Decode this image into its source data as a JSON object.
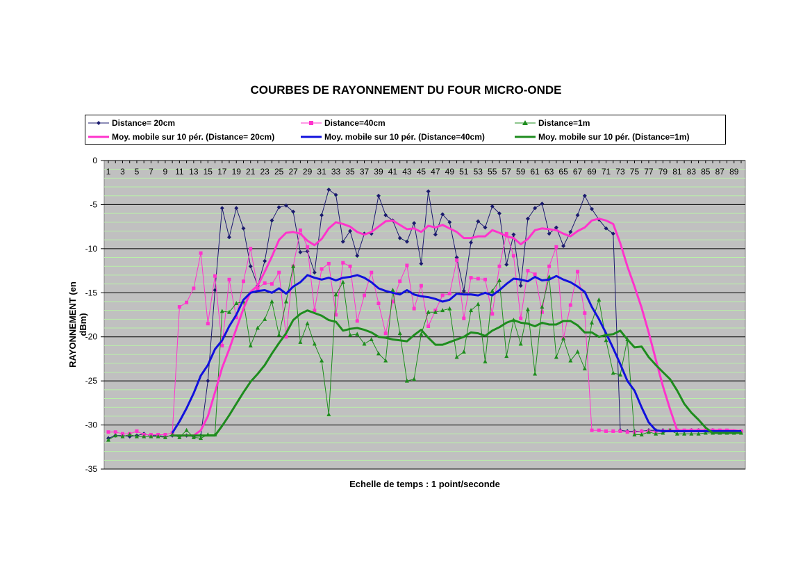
{
  "chart_data": {
    "type": "line",
    "title": "COURBES DE RAYONNEMENT DU FOUR MICRO-ONDE",
    "xlabel": "Echelle de temps : 1 point/seconde",
    "ylabel": "RAYONNEMENT (en dBm)",
    "ylim": [
      -35,
      0
    ],
    "yticks": [
      0,
      -5,
      -10,
      -15,
      -20,
      -25,
      -30,
      -35
    ],
    "xlim": [
      1,
      90
    ],
    "xtick_labels": [
      "1",
      "3",
      "5",
      "7",
      "9",
      "11",
      "13",
      "15",
      "17",
      "19",
      "21",
      "23",
      "25",
      "27",
      "29",
      "31",
      "33",
      "35",
      "37",
      "39",
      "41",
      "43",
      "45",
      "47",
      "49",
      "51",
      "53",
      "55",
      "57",
      "59",
      "61",
      "63",
      "65",
      "67",
      "69",
      "71",
      "73",
      "75",
      "77",
      "79",
      "81",
      "83",
      "85",
      "87",
      "89"
    ],
    "grid": "horizontal",
    "legend_position": "top",
    "series": [
      {
        "name": "Distance= 20cm",
        "color": "#1a1a6e",
        "marker": "diamond",
        "width": 1,
        "values": [
          -31.5,
          -31.2,
          -31.2,
          -31.3,
          -31.2,
          -31.0,
          -31.2,
          -31.2,
          -31.3,
          -31.2,
          -31.3,
          -31.2,
          -31.3,
          -31.2,
          -25.0,
          -14.7,
          -5.4,
          -8.7,
          -5.4,
          -7.7,
          -12.0,
          -14.2,
          -11.4,
          -6.8,
          -5.3,
          -5.1,
          -5.8,
          -10.4,
          -10.3,
          -12.7,
          -6.2,
          -3.3,
          -3.9,
          -9.2,
          -8.0,
          -10.8,
          -8.3,
          -8.3,
          -4.0,
          -6.2,
          -6.8,
          -8.8,
          -9.2,
          -7.1,
          -11.7,
          -3.5,
          -8.4,
          -6.1,
          -7.0,
          -11.0,
          -14.8,
          -9.3,
          -6.9,
          -7.6,
          -5.2,
          -6.0,
          -11.8,
          -8.4,
          -14.2,
          -6.6,
          -5.4,
          -4.9,
          -8.3,
          -7.6,
          -9.7,
          -8.1,
          -6.2,
          -4.0,
          -5.5,
          -6.7,
          -7.7,
          -8.3,
          -30.6,
          -30.7,
          -30.7,
          -30.7,
          -30.6,
          -30.6,
          -30.6,
          -30.6,
          -30.6,
          -30.7,
          -30.6,
          -30.6,
          -30.6,
          -30.6,
          -30.7,
          -30.7,
          -30.7,
          -30.8
        ]
      },
      {
        "name": "Distance=40cm",
        "color": "#ff33cc",
        "marker": "square",
        "width": 1,
        "values": [
          -30.8,
          -30.8,
          -31.0,
          -31.0,
          -30.7,
          -31.1,
          -31.1,
          -31.1,
          -31.1,
          -30.9,
          -16.6,
          -16.1,
          -14.5,
          -10.5,
          -18.5,
          -13.1,
          -21.0,
          -13.5,
          -17.8,
          -13.7,
          -10.0,
          -14.5,
          -13.9,
          -14.0,
          -12.7,
          -20.0,
          -12.0,
          -7.9,
          -9.8,
          -17.0,
          -12.3,
          -11.7,
          -17.5,
          -11.6,
          -12.0,
          -18.2,
          -15.3,
          -12.7,
          -16.2,
          -19.6,
          -16.0,
          -13.7,
          -11.9,
          -16.8,
          -14.2,
          -18.8,
          -17.0,
          -15.3,
          -15.1,
          -11.3,
          -17.9,
          -13.3,
          -13.4,
          -13.5,
          -17.4,
          -12.0,
          -8.3,
          -10.8,
          -17.9,
          -12.5,
          -12.9,
          -17.2,
          -12.0,
          -9.8,
          -20.2,
          -16.4,
          -12.6,
          -17.3,
          -30.6,
          -30.6,
          -30.7,
          -30.7,
          -30.7,
          -30.8,
          -30.8,
          -30.7,
          -30.7,
          -30.7,
          -30.7,
          -30.6,
          -30.6,
          -30.6,
          -30.6,
          -30.6,
          -30.6,
          -30.6,
          -30.6,
          -30.6,
          -30.7,
          -30.7
        ]
      },
      {
        "name": "Distance=1m",
        "color": "#1e8c1e",
        "marker": "triangle",
        "width": 1,
        "values": [
          -31.7,
          -31.2,
          -31.3,
          -31.1,
          -31.3,
          -31.3,
          -31.3,
          -31.3,
          -31.4,
          -31.1,
          -31.4,
          -30.6,
          -31.4,
          -31.5,
          -31.1,
          -31.1,
          -17.1,
          -17.2,
          -16.2,
          -16.0,
          -21.0,
          -19.0,
          -18.0,
          -16.0,
          -19.8,
          -16.0,
          -12.0,
          -20.6,
          -18.5,
          -20.8,
          -22.7,
          -28.8,
          -15.2,
          -13.8,
          -19.8,
          -19.7,
          -20.8,
          -20.3,
          -21.9,
          -22.7,
          -14.7,
          -19.6,
          -25.0,
          -24.8,
          -19.7,
          -17.2,
          -17.2,
          -17.0,
          -16.8,
          -22.3,
          -21.7,
          -17.0,
          -16.3,
          -22.8,
          -14.8,
          -13.6,
          -22.2,
          -18.1,
          -20.8,
          -16.9,
          -24.2,
          -16.6,
          -13.2,
          -22.3,
          -20.2,
          -22.7,
          -21.7,
          -23.6,
          -18.4,
          -15.8,
          -20.4,
          -24.1,
          -24.3,
          -20.3,
          -31.1,
          -31.1,
          -30.8,
          -31.0,
          -30.9,
          -30.6,
          -31.0,
          -31.0,
          -31.0,
          -31.0,
          -30.9,
          -30.9,
          -30.9,
          -30.9,
          -30.9,
          -30.9
        ]
      },
      {
        "name": "Moy. mobile sur 10 pér. (Distance= 20cm)",
        "color": "#ff33cc",
        "marker": "none",
        "width": 3,
        "values": [
          null,
          null,
          null,
          null,
          null,
          null,
          null,
          null,
          null,
          -31.2,
          -31.2,
          -31.2,
          -31.2,
          -30.6,
          -29.0,
          -26.3,
          -23.5,
          -21.4,
          -19.1,
          -16.8,
          -14.9,
          -14.2,
          -12.6,
          -10.9,
          -9.0,
          -8.2,
          -8.1,
          -8.3,
          -9.1,
          -9.6,
          -8.9,
          -7.7,
          -7.0,
          -7.2,
          -7.5,
          -8.1,
          -8.4,
          -8.1,
          -7.5,
          -6.9,
          -6.8,
          -7.3,
          -7.8,
          -7.7,
          -8.1,
          -7.4,
          -7.6,
          -7.3,
          -7.7,
          -8.1,
          -8.8,
          -8.8,
          -8.6,
          -8.6,
          -7.9,
          -8.2,
          -8.6,
          -8.8,
          -9.5,
          -8.9,
          -7.9,
          -7.7,
          -7.8,
          -7.9,
          -8.3,
          -8.6,
          -8.0,
          -7.6,
          -6.8,
          -6.6,
          -6.8,
          -7.2,
          -9.4,
          -12.0,
          -14.3,
          -16.7,
          -19.5,
          -22.6,
          -25.6,
          -28.2,
          -30.6,
          -30.6,
          -30.6,
          -30.6,
          -30.6,
          -30.6,
          -30.6,
          -30.6,
          -30.6,
          -30.7
        ]
      },
      {
        "name": "Moy. mobile sur 10 pér. (Distance=40cm)",
        "color": "#1111dd",
        "marker": "none",
        "width": 3,
        "values": [
          null,
          null,
          null,
          null,
          null,
          null,
          null,
          null,
          null,
          -30.9,
          -29.6,
          -28.1,
          -26.4,
          -24.4,
          -23.2,
          -21.4,
          -20.4,
          -18.8,
          -17.5,
          -15.8,
          -15.0,
          -14.8,
          -14.7,
          -15.0,
          -14.5,
          -15.1,
          -14.3,
          -13.8,
          -13.0,
          -13.3,
          -13.5,
          -13.3,
          -13.6,
          -13.3,
          -13.2,
          -13.0,
          -13.3,
          -13.8,
          -14.5,
          -14.8,
          -15.0,
          -15.2,
          -14.7,
          -15.2,
          -15.4,
          -15.5,
          -15.7,
          -16.0,
          -15.8,
          -15.1,
          -15.2,
          -15.2,
          -15.3,
          -15.0,
          -15.3,
          -14.7,
          -14.0,
          -13.4,
          -13.5,
          -13.7,
          -13.2,
          -13.6,
          -13.5,
          -13.1,
          -13.5,
          -13.8,
          -14.3,
          -14.9,
          -16.6,
          -18.0,
          -19.6,
          -21.3,
          -23.1,
          -25.0,
          -26.1,
          -28.0,
          -29.7,
          -30.6,
          -30.7,
          -30.7,
          -30.7,
          -30.7,
          -30.7,
          -30.7,
          -30.7,
          -30.7,
          -30.7,
          -30.7,
          -30.7,
          -30.7
        ]
      },
      {
        "name": "Moy. mobile sur 10 pér. (Distance=1m)",
        "color": "#1e8c1e",
        "marker": "none",
        "width": 3,
        "values": [
          null,
          null,
          null,
          null,
          null,
          null,
          null,
          null,
          null,
          -31.2,
          -31.2,
          -31.2,
          -31.2,
          -31.2,
          -31.2,
          -31.2,
          -30.1,
          -28.9,
          -27.6,
          -26.3,
          -25.1,
          -24.2,
          -23.2,
          -21.9,
          -20.7,
          -19.6,
          -18.1,
          -17.4,
          -17.0,
          -17.3,
          -17.6,
          -18.1,
          -18.3,
          -19.3,
          -19.1,
          -19.0,
          -19.2,
          -19.5,
          -20.0,
          -20.1,
          -20.3,
          -20.4,
          -20.5,
          -19.8,
          -19.2,
          -20.1,
          -20.9,
          -20.9,
          -20.6,
          -20.3,
          -20.0,
          -19.5,
          -19.6,
          -19.9,
          -19.3,
          -18.9,
          -18.4,
          -18.1,
          -18.4,
          -18.5,
          -18.8,
          -18.4,
          -18.6,
          -18.6,
          -18.2,
          -18.2,
          -18.7,
          -19.5,
          -19.5,
          -20.0,
          -19.8,
          -19.7,
          -19.3,
          -20.3,
          -21.2,
          -21.1,
          -22.3,
          -23.2,
          -24.0,
          -24.8,
          -26.1,
          -27.6,
          -28.6,
          -29.4,
          -30.3,
          -30.9,
          -30.9,
          -30.9,
          -30.9,
          -30.9
        ]
      }
    ]
  }
}
